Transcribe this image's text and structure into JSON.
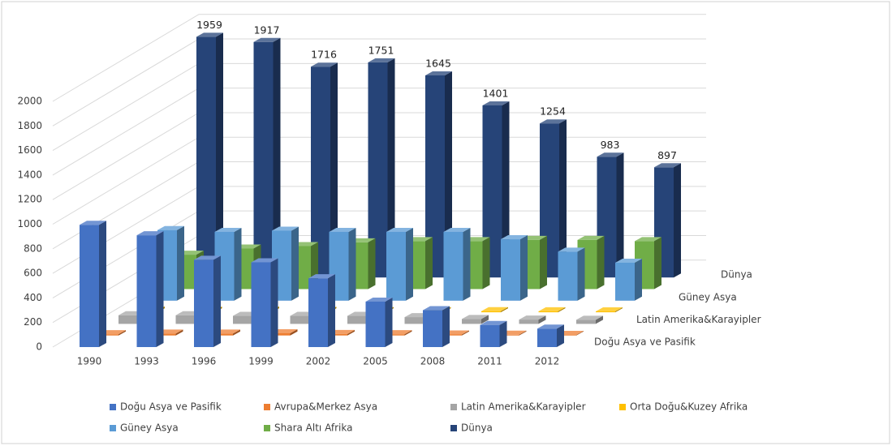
{
  "chart_data": {
    "type": "bar3d",
    "categories": [
      "1990",
      "1993",
      "1996",
      "1999",
      "2002",
      "2005",
      "2008",
      "2011",
      "2012"
    ],
    "ylim": [
      0,
      2000
    ],
    "yticks": [
      0,
      200,
      400,
      600,
      800,
      1000,
      1200,
      1400,
      1600,
      1800,
      2000
    ],
    "grid": true,
    "legend": "bottom",
    "series": [
      {
        "name": "Doğu Asya ve Pasifik",
        "color": "#4472c4",
        "values": [
          995,
          910,
          710,
          690,
          560,
          370,
          300,
          180,
          150
        ]
      },
      {
        "name": "Avrupa&Merkez Asya",
        "color": "#ed7d31",
        "values": [
          10,
          15,
          15,
          18,
          12,
          10,
          8,
          6,
          5
        ]
      },
      {
        "name": "Latin Amerika&Karayipler",
        "color": "#a5a5a5",
        "values": [
          70,
          70,
          65,
          65,
          65,
          55,
          40,
          35,
          33
        ]
      },
      {
        "name": "Orta Doğu&Kuzey Afrika",
        "color": "#ffc000",
        "values": [
          14,
          13,
          14,
          12,
          10,
          9,
          9,
          8,
          7
        ]
      },
      {
        "name": "Güney Asya",
        "color": "#5b9bd5",
        "values": [
          575,
          560,
          570,
          560,
          560,
          560,
          500,
          399,
          309
        ]
      },
      {
        "name": "Shara Altı Afrika",
        "color": "#70ad47",
        "values": [
          280,
          330,
          350,
          380,
          390,
          390,
          400,
          400,
          390
        ]
      },
      {
        "name": "Dünya",
        "color": "#264478",
        "values": [
          1959,
          1917,
          1716,
          1751,
          1645,
          1401,
          1254,
          983,
          897
        ]
      }
    ]
  }
}
